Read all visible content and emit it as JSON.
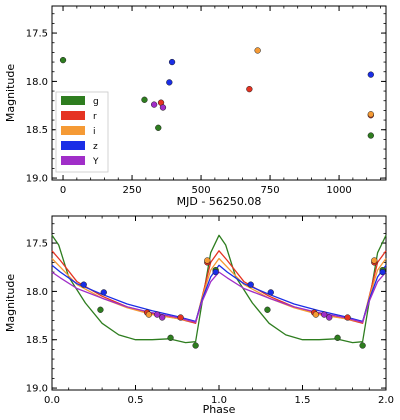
{
  "chart_data": [
    {
      "type": "scatter",
      "title": "",
      "xlabel": "MJD - 56250.08",
      "ylabel": "Magnitude",
      "xlim": [
        -40,
        1170
      ],
      "ylim": [
        19.02,
        17.22
      ],
      "y_inverted": true,
      "xticks": [
        "0",
        "250",
        "500",
        "750",
        "1000"
      ],
      "xtick_values": [
        0,
        250,
        500,
        750,
        1000
      ],
      "yticks": [
        "17.5",
        "18.0",
        "18.5",
        "19.0"
      ],
      "ytick_values": [
        17.5,
        18.0,
        18.5,
        19.0
      ],
      "legend_position": "center-left",
      "series": [
        {
          "name": "g",
          "color": "#2e7d1f",
          "points": [
            [
              0,
              17.78
            ],
            [
              295,
              18.19
            ],
            [
              345,
              18.48
            ],
            [
              1115,
              18.56
            ]
          ]
        },
        {
          "name": "r",
          "color": "#e53322",
          "points": [
            [
              355,
              18.22
            ],
            [
              675,
              18.08
            ],
            [
              1115,
              18.35
            ]
          ]
        },
        {
          "name": "i",
          "color": "#f59a35",
          "points": [
            [
              705,
              17.68
            ],
            [
              1115,
              18.34
            ]
          ]
        },
        {
          "name": "z",
          "color": "#1a2ee6",
          "points": [
            [
              385,
              18.01
            ],
            [
              395,
              17.8
            ],
            [
              1115,
              17.93
            ]
          ]
        },
        {
          "name": "Y",
          "color": "#a02ec8",
          "points": [
            [
              330,
              18.24
            ],
            [
              362,
              18.27
            ]
          ]
        }
      ]
    },
    {
      "type": "line",
      "title": "",
      "xlabel": "Phase",
      "ylabel": "Magnitude",
      "xlim": [
        0.0,
        2.0
      ],
      "ylim": [
        19.02,
        17.22
      ],
      "y_inverted": true,
      "xticks": [
        "0.0",
        "0.5",
        "1.0",
        "1.5",
        "2.0"
      ],
      "xtick_values": [
        0.0,
        0.5,
        1.0,
        1.5,
        2.0
      ],
      "yticks": [
        "17.5",
        "18.0",
        "18.5",
        "19.0"
      ],
      "ytick_values": [
        17.5,
        18.0,
        18.5,
        19.0
      ],
      "curves": [
        {
          "name": "g",
          "color": "#2e7d1f",
          "phase": [
            0,
            0.04,
            0.1,
            0.2,
            0.3,
            0.4,
            0.5,
            0.6,
            0.7,
            0.8,
            0.86,
            0.9,
            0.95,
            1.0
          ],
          "mag": [
            17.42,
            17.52,
            17.85,
            18.12,
            18.33,
            18.45,
            18.5,
            18.5,
            18.49,
            18.53,
            18.52,
            18.1,
            17.6,
            17.42
          ]
        },
        {
          "name": "r",
          "color": "#e53322",
          "phase": [
            0,
            0.05,
            0.15,
            0.3,
            0.45,
            0.6,
            0.75,
            0.86,
            0.9,
            0.95,
            1.0
          ],
          "mag": [
            17.58,
            17.68,
            17.9,
            18.05,
            18.16,
            18.23,
            18.28,
            18.33,
            18.05,
            17.7,
            17.58
          ]
        },
        {
          "name": "i",
          "color": "#f59a35",
          "phase": [
            0,
            0.05,
            0.15,
            0.3,
            0.45,
            0.6,
            0.75,
            0.86,
            0.9,
            0.95,
            1.0
          ],
          "mag": [
            17.66,
            17.75,
            17.93,
            18.07,
            18.17,
            18.24,
            18.28,
            18.32,
            18.06,
            17.78,
            17.66
          ]
        },
        {
          "name": "z",
          "color": "#1a2ee6",
          "phase": [
            0,
            0.05,
            0.15,
            0.3,
            0.45,
            0.6,
            0.75,
            0.86,
            0.9,
            0.95,
            1.0
          ],
          "mag": [
            17.73,
            17.8,
            17.92,
            18.03,
            18.13,
            18.2,
            18.26,
            18.31,
            18.08,
            17.85,
            17.73
          ]
        },
        {
          "name": "Y",
          "color": "#a02ec8",
          "phase": [
            0,
            0.05,
            0.15,
            0.3,
            0.45,
            0.6,
            0.75,
            0.86,
            0.9,
            0.95,
            1.0
          ],
          "mag": [
            17.8,
            17.86,
            17.97,
            18.07,
            18.16,
            18.22,
            18.27,
            18.32,
            18.1,
            17.9,
            17.8
          ]
        }
      ],
      "points": [
        {
          "series": "g",
          "color": "#2e7d1f",
          "phase": [
            0.29,
            0.71,
            0.86,
            0.98
          ],
          "mag": [
            18.19,
            18.48,
            18.56,
            17.78
          ]
        },
        {
          "series": "r",
          "color": "#e53322",
          "phase": [
            0.57,
            0.77,
            0.93
          ],
          "mag": [
            18.22,
            18.27,
            17.7
          ]
        },
        {
          "series": "i",
          "color": "#f59a35",
          "phase": [
            0.58,
            0.93
          ],
          "mag": [
            18.24,
            17.68
          ]
        },
        {
          "series": "z",
          "color": "#1a2ee6",
          "phase": [
            0.19,
            0.31,
            0.98
          ],
          "mag": [
            17.93,
            18.01,
            17.8
          ]
        },
        {
          "series": "Y",
          "color": "#a02ec8",
          "phase": [
            0.63,
            0.66
          ],
          "mag": [
            18.24,
            18.27
          ]
        }
      ]
    }
  ]
}
